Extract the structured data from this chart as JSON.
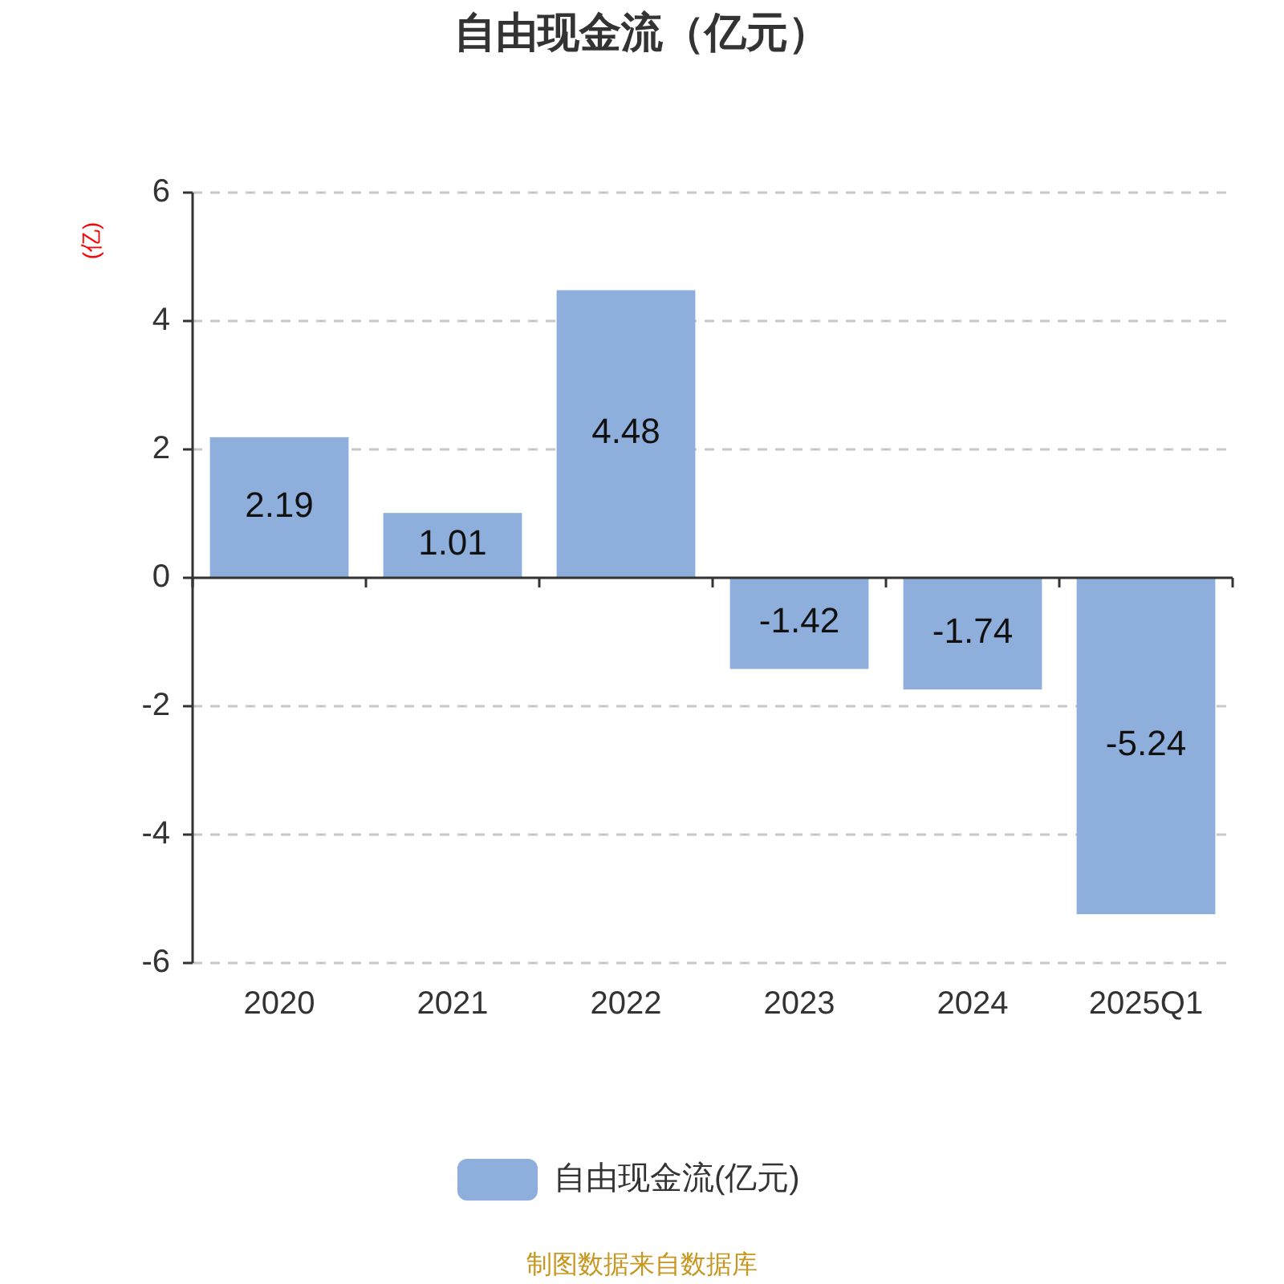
{
  "chart_data": {
    "type": "bar",
    "title": "自由现金流（亿元）",
    "ylabel": "(亿)",
    "categories": [
      "2020",
      "2021",
      "2022",
      "2023",
      "2024",
      "2025Q1"
    ],
    "series": [
      {
        "name": "自由现金流(亿元)",
        "color": "#8eaedb",
        "values": [
          2.19,
          1.01,
          4.48,
          -1.42,
          -1.74,
          -5.24
        ]
      }
    ],
    "ylim": [
      -6,
      6
    ],
    "yticks": [
      -6,
      -4,
      -2,
      0,
      2,
      4,
      6
    ],
    "grid": "y",
    "legend": "bottom",
    "data_labels": true,
    "annotations": [
      "制图数据来自数据库"
    ]
  }
}
